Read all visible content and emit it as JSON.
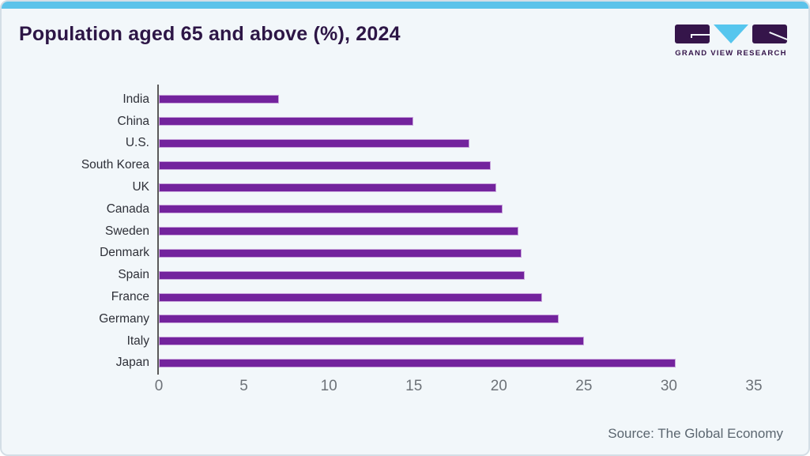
{
  "title": "Population aged 65 and above (%), 2024",
  "logo": {
    "text": "GRAND VIEW RESEARCH",
    "brand_purple": "#35154a",
    "brand_blue": "#56c6ee"
  },
  "colors": {
    "card_background": "#f2f7fa",
    "card_border": "#d4dee6",
    "top_accent_bar": "#5cc3ea",
    "title_text": "#2d1646",
    "bar_fill": "#73239d",
    "bar_edge": "#c9a5dc",
    "axis_line": "#5a5a5a",
    "tick_text": "#6d7278",
    "category_text": "#2e3038",
    "source_text": "#5b6670"
  },
  "chart_data": {
    "type": "bar",
    "orientation": "horizontal",
    "title": "Population aged 65 and above (%), 2024",
    "categories": [
      "India",
      "China",
      "U.S.",
      "South Korea",
      "UK",
      "Canada",
      "Sweden",
      "Denmark",
      "Spain",
      "France",
      "Germany",
      "Italy",
      "Japan"
    ],
    "values": [
      7.0,
      14.9,
      18.2,
      19.5,
      19.8,
      20.2,
      21.1,
      21.3,
      21.5,
      22.5,
      23.5,
      25.0,
      30.4
    ],
    "x_ticks": [
      0,
      5,
      10,
      15,
      20,
      25,
      30,
      35
    ],
    "xlim": [
      0,
      35
    ],
    "xlabel": "",
    "ylabel": "",
    "grid": false,
    "legend": "none",
    "bar_color": "#73239d",
    "source": "Source: The Global Economy"
  }
}
